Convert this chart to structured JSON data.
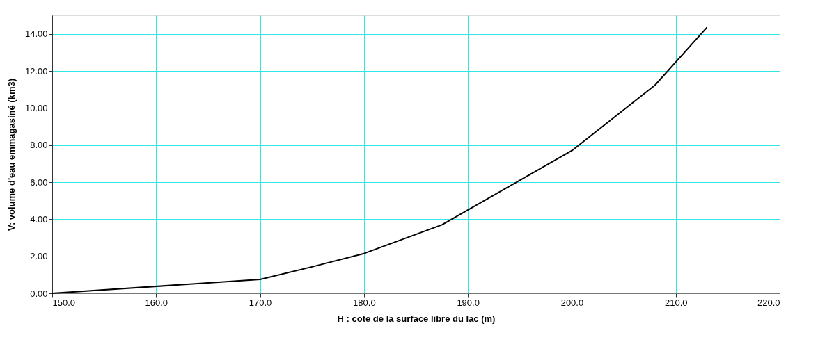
{
  "chart_data": {
    "type": "line",
    "xlabel": "H : cote de la surface libre du lac (m)",
    "ylabel": "V: volume d'eau emmagasiné (km3)",
    "x": [
      150,
      170,
      175,
      180,
      187.5,
      200,
      208,
      213
    ],
    "series": [
      {
        "color": "#000000",
        "values": [
          0,
          0.75,
          1.43,
          2.15,
          3.7,
          7.7,
          11.23,
          14.35
        ]
      }
    ],
    "xlim": [
      150,
      220
    ],
    "xticks": [
      {
        "value": 150,
        "label": "150.0"
      },
      {
        "value": 160,
        "label": "160.0"
      },
      {
        "value": 170,
        "label": "170.0"
      },
      {
        "value": 180,
        "label": "180.0"
      },
      {
        "value": 190,
        "label": "190.0"
      },
      {
        "value": 200,
        "label": "200.0"
      },
      {
        "value": 210,
        "label": "210.0"
      },
      {
        "value": 220,
        "label": "220.0"
      }
    ],
    "ylim": [
      0,
      15
    ],
    "yticks": [
      {
        "value": 0,
        "label": "0.00"
      },
      {
        "value": 2,
        "label": "2.00"
      },
      {
        "value": 4,
        "label": "4.00"
      },
      {
        "value": 6,
        "label": "6.00"
      },
      {
        "value": 8,
        "label": "8.00"
      },
      {
        "value": 10,
        "label": "10.00"
      },
      {
        "value": 12,
        "label": "12.00"
      },
      {
        "value": 14,
        "label": "14.00"
      }
    ],
    "grid": true,
    "marker": "none",
    "line_style": "solid"
  }
}
